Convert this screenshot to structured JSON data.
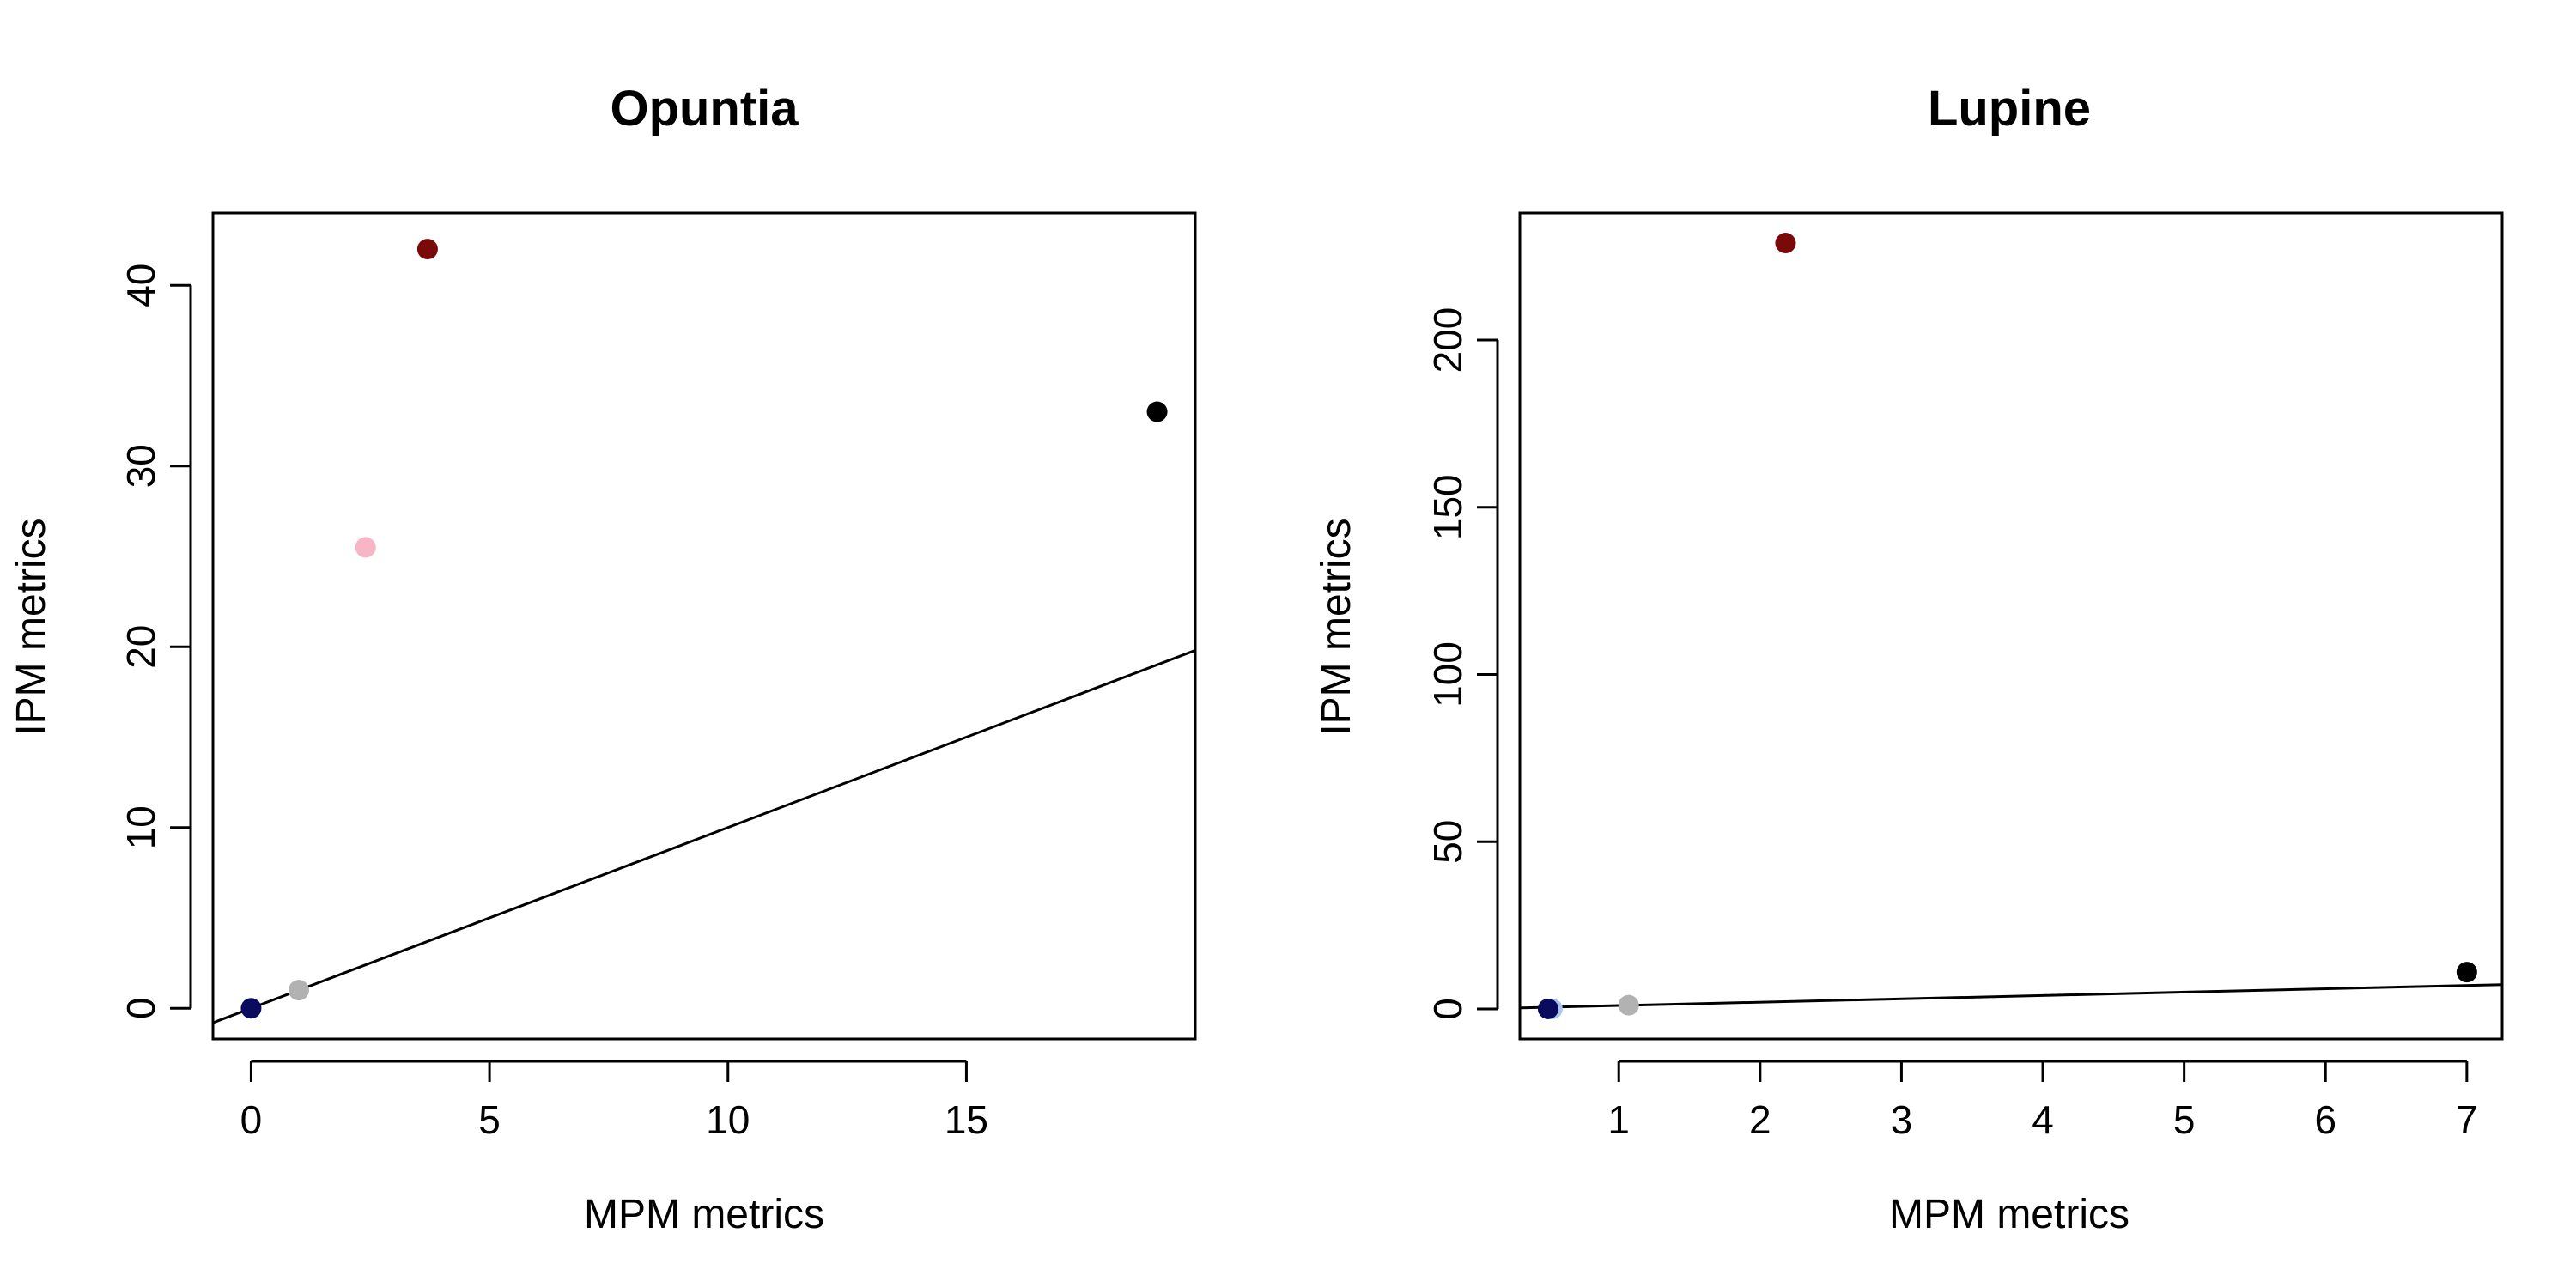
{
  "chart_data": [
    {
      "type": "scatter",
      "title": "Opuntia",
      "xlabel": "MPM metrics",
      "ylabel": "IPM metrics",
      "xlim": [
        -0.8,
        19.8
      ],
      "ylim": [
        -1.7,
        44.0
      ],
      "xticks": [
        0,
        5,
        10,
        15
      ],
      "yticks": [
        0,
        10,
        20,
        30,
        40
      ],
      "grid": false,
      "legend": "none",
      "reference_line": {
        "type": "abline",
        "intercept": 0,
        "slope": 1
      },
      "points": [
        {
          "x": 0.0,
          "y": 0.0,
          "color": "#0b0b5e"
        },
        {
          "x": 1.0,
          "y": 1.0,
          "color": "#b2b2b2"
        },
        {
          "x": 2.4,
          "y": 25.5,
          "color": "#f7b6c6"
        },
        {
          "x": 3.7,
          "y": 42.0,
          "color": "#7a0a0a"
        },
        {
          "x": 19.0,
          "y": 33.0,
          "color": "#000000"
        }
      ]
    },
    {
      "type": "scatter",
      "title": "Lupine",
      "xlabel": "MPM metrics",
      "ylabel": "IPM metrics",
      "xlim": [
        0.3,
        7.25
      ],
      "ylim": [
        -9.0,
        238.0
      ],
      "xticks": [
        1,
        2,
        3,
        4,
        5,
        6,
        7
      ],
      "yticks": [
        0,
        50,
        100,
        150,
        200
      ],
      "grid": false,
      "legend": "none",
      "reference_line": {
        "type": "abline",
        "intercept": 0,
        "slope": 1
      },
      "points": [
        {
          "x": 0.53,
          "y": 0.0,
          "color": "#a9c4ee"
        },
        {
          "x": 0.5,
          "y": 0.0,
          "color": "#0b0b5e"
        },
        {
          "x": 1.07,
          "y": 1.1,
          "color": "#b2b2b2"
        },
        {
          "x": 2.18,
          "y": 229.0,
          "color": "#7a0a0a"
        },
        {
          "x": 7.0,
          "y": 11.0,
          "color": "#000000"
        }
      ]
    }
  ]
}
